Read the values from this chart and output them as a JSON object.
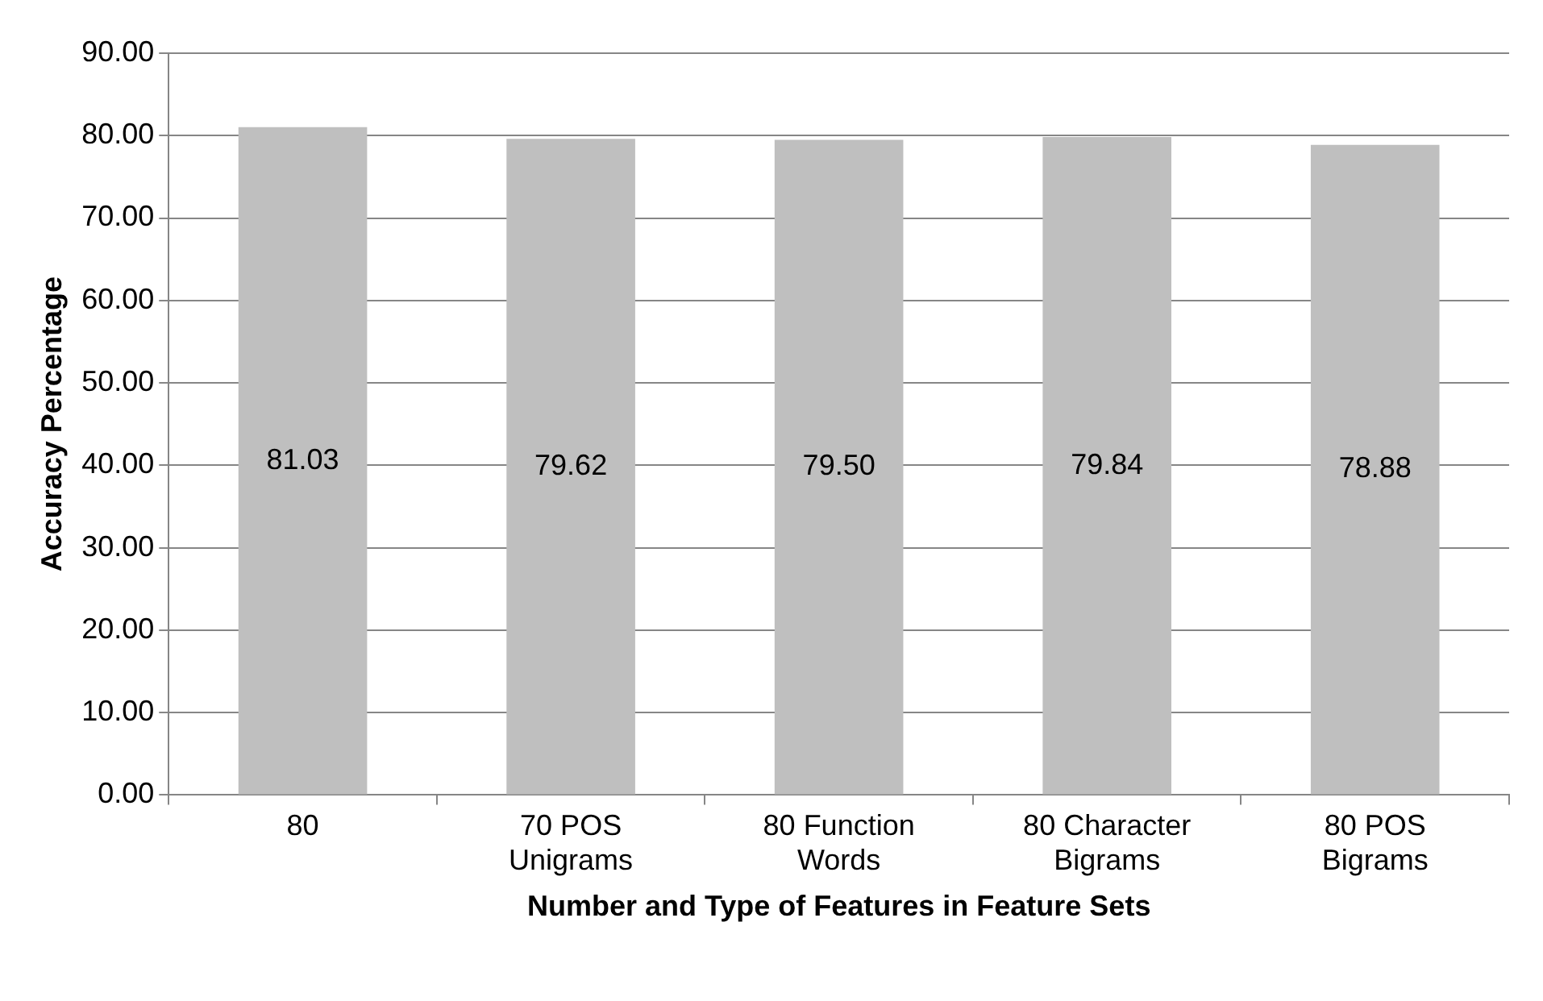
{
  "chart_data": {
    "type": "bar",
    "xlabel": "Number and Type of Features in Feature Sets",
    "ylabel": "Accuracy Percentage",
    "categories": [
      "80",
      "70 POS Unigrams",
      "80 Function Words",
      "80 Character Bigrams",
      "80 POS Bigrams"
    ],
    "values": [
      81.03,
      79.62,
      79.5,
      79.84,
      78.88
    ],
    "color": "#bfbfbf",
    "value_labels": [
      "81.03",
      "79.62",
      "79.50",
      "79.84",
      "78.88"
    ],
    "ylim": [
      0,
      90
    ],
    "yticks": [
      {
        "value": 0,
        "label": "0.00"
      },
      {
        "value": 10,
        "label": "10.00"
      },
      {
        "value": 20,
        "label": "20.00"
      },
      {
        "value": 30,
        "label": "30.00"
      },
      {
        "value": 40,
        "label": "40.00"
      },
      {
        "value": 50,
        "label": "50.00"
      },
      {
        "value": 60,
        "label": "60.00"
      },
      {
        "value": 70,
        "label": "70.00"
      },
      {
        "value": 80,
        "label": "80.00"
      },
      {
        "value": 90,
        "label": "90.00"
      }
    ],
    "grid": "y",
    "legend": false
  }
}
